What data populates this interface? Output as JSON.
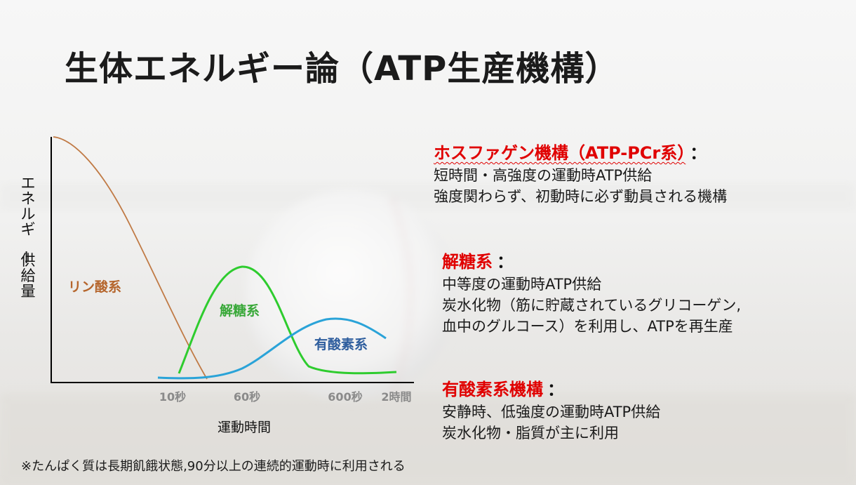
{
  "slide": {
    "title": "生体エネルギー論（ATP生産機構）",
    "footnote": "※たんぱく質は長期飢餓状態,90分以上の連続的運動時に利用される",
    "background_icon": "baseball-icon"
  },
  "sections": [
    {
      "heading": "ホスファゲン機構（ATP-PCr系）",
      "colon": "：",
      "lines": [
        "短時間・高強度の運動時ATP供給",
        "強度関わらず、初動時に必ず動員される機構"
      ]
    },
    {
      "heading": "解糖系",
      "colon": "：",
      "lines": [
        "中等度の運動時ATP供給",
        "炭水化物（筋に貯蔵されているグリコーゲン,",
        "血中のグルコース）を利用し、ATPを再生産"
      ]
    },
    {
      "heading": "有酸素系機構",
      "colon": "：",
      "lines": [
        "安静時、低強度の運動時ATP供給",
        "炭水化物・脂質が主に利用"
      ]
    }
  ],
  "chart_data": {
    "type": "line",
    "ylabel": "エネルギー供給量",
    "xlabel": "運動時間",
    "x_ticks": [
      "10秒",
      "60秒",
      "600秒",
      "2時間"
    ],
    "series": [
      {
        "name": "リン酸系",
        "color": "#c07a45"
      },
      {
        "name": "解糖系",
        "color": "#2ecc2e"
      },
      {
        "name": "有酸素系",
        "color": "#2aa3d8"
      }
    ],
    "label_colors": {
      "phosphagen": "#b5652c",
      "glycolytic": "#38a838",
      "aerobic": "#2f5e9e"
    }
  }
}
